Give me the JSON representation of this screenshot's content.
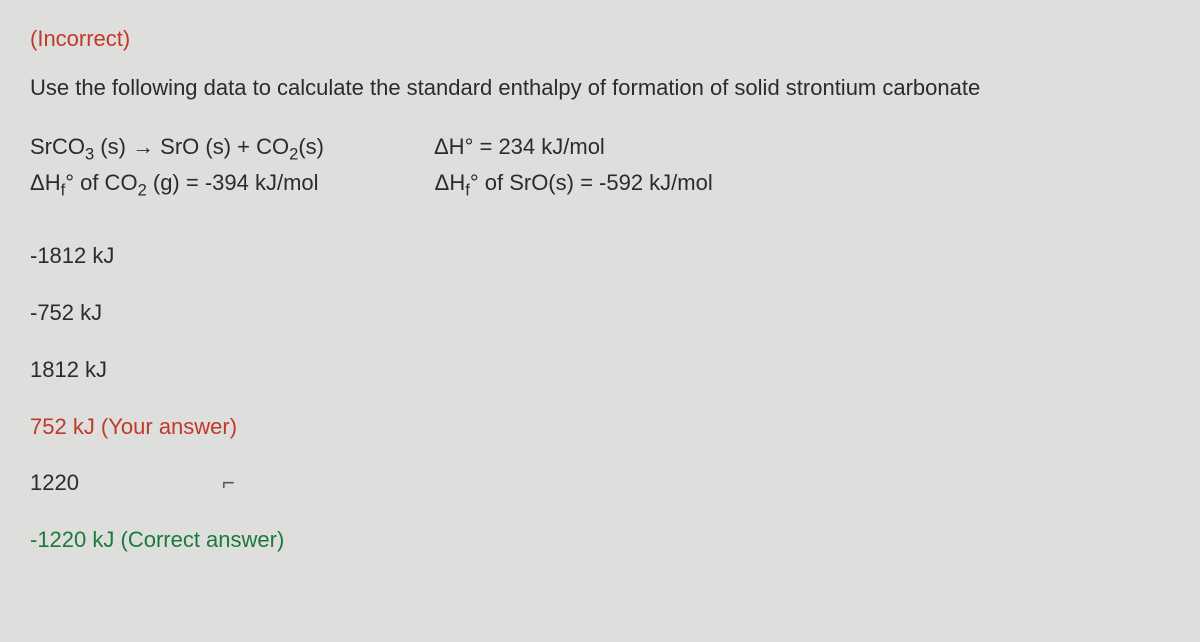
{
  "status": "(Incorrect)",
  "prompt": "Use the following data to calculate the standard enthalpy of formation of solid strontium carbonate",
  "data": {
    "reaction_left": "SrCO₃ (s) → SrO (s) + CO₂(s)",
    "reaction_right": "ΔH° = 234 kJ/mol",
    "co2_left": "ΔH꜀° of CO₂ (g) = -394 kJ/mol",
    "sro_right": "ΔH꜀° of SrO(s) = -592 kJ/mol"
  },
  "answers": {
    "a1": "-1812 kJ",
    "a2": "-752 kJ",
    "a3": "1812 kJ",
    "a4": "752 kJ (Your answer)",
    "a5": "1220",
    "a6": "-1220 kJ (Correct answer)"
  },
  "colors": {
    "background": "#dedfdc",
    "text": "#2b2b2b",
    "incorrect": "#c0392b",
    "correct": "#1a7a3a"
  }
}
